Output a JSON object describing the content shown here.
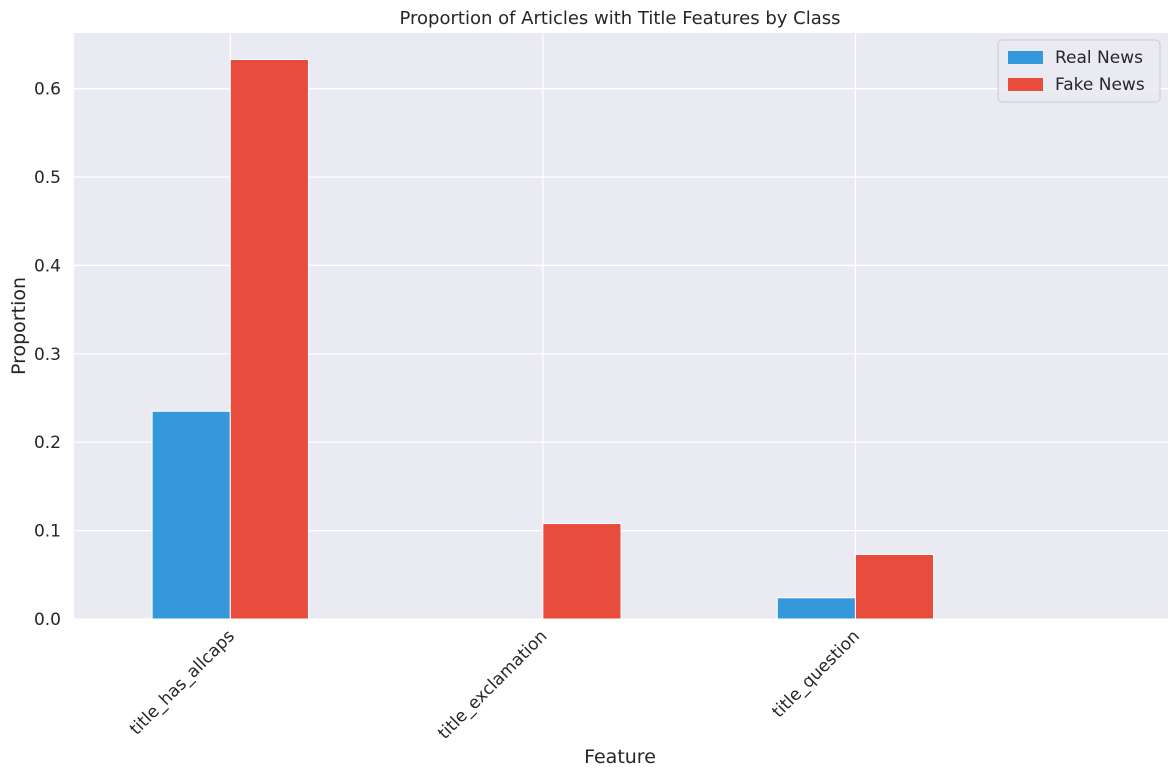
{
  "chart_data": {
    "type": "bar",
    "title": "Proportion of Articles with Title Features by Class",
    "xlabel": "Feature",
    "ylabel": "Proportion",
    "categories": [
      "title_has_allcaps",
      "title_exclamation",
      "title_question"
    ],
    "series": [
      {
        "name": "Real News",
        "color": "#3498db",
        "values": [
          0.235,
          0.0,
          0.024
        ]
      },
      {
        "name": "Fake News",
        "color": "#e74c3c",
        "values": [
          0.633,
          0.108,
          0.073
        ]
      }
    ],
    "ylim": [
      0,
      0.663
    ],
    "yticks": [
      0.0,
      0.1,
      0.2,
      0.3,
      0.4,
      0.5,
      0.6
    ],
    "ytick_labels": [
      "0.0",
      "0.1",
      "0.2",
      "0.3",
      "0.4",
      "0.5",
      "0.6"
    ],
    "grid": true,
    "legend_position": "top-right",
    "background_color": "#eaeaf2"
  }
}
